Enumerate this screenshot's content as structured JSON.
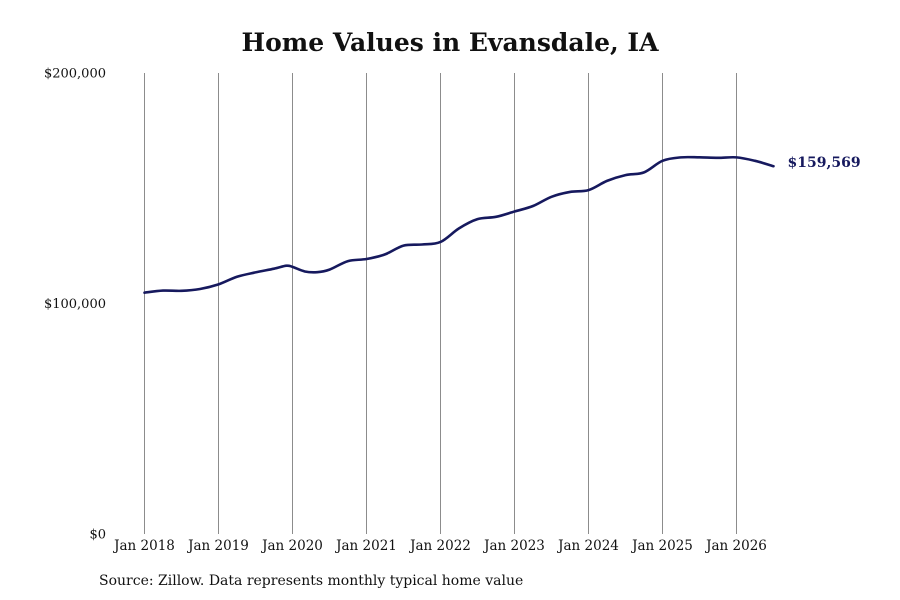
{
  "chart_data": {
    "type": "line",
    "title": "Home Values in Evansdale, IA",
    "xlabel": "",
    "ylabel": "",
    "ylim": [
      0,
      200000
    ],
    "y_ticks": [
      {
        "value": 0,
        "label": "$0"
      },
      {
        "value": 100000,
        "label": "$100,000"
      },
      {
        "value": 200000,
        "label": "$200,000"
      }
    ],
    "x_ticks": [
      {
        "value": "2018-01",
        "label": "Jan 2018"
      },
      {
        "value": "2019-01",
        "label": "Jan 2019"
      },
      {
        "value": "2020-01",
        "label": "Jan 2020"
      },
      {
        "value": "2021-01",
        "label": "Jan 2021"
      },
      {
        "value": "2022-01",
        "label": "Jan 2022"
      },
      {
        "value": "2023-01",
        "label": "Jan 2023"
      },
      {
        "value": "2024-01",
        "label": "Jan 2024"
      },
      {
        "value": "2025-01",
        "label": "Jan 2025"
      },
      {
        "value": "2026-01",
        "label": "Jan 2026"
      }
    ],
    "x_range": [
      "2018-01",
      "2026-07"
    ],
    "grid": {
      "vertical": true,
      "horizontal": false
    },
    "line_color": "#16195e",
    "grid_color": "#8c8c8c",
    "series": [
      {
        "points": [
          {
            "x": "2018-01",
            "y": 104700
          },
          {
            "x": "2018-04",
            "y": 105600
          },
          {
            "x": "2018-07",
            "y": 105500
          },
          {
            "x": "2018-10",
            "y": 106300
          },
          {
            "x": "2019-01",
            "y": 108300
          },
          {
            "x": "2019-04",
            "y": 111600
          },
          {
            "x": "2019-07",
            "y": 113500
          },
          {
            "x": "2019-10",
            "y": 115100
          },
          {
            "x": "2019-12",
            "y": 116400
          },
          {
            "x": "2020-01",
            "y": 115900
          },
          {
            "x": "2020-03",
            "y": 113900
          },
          {
            "x": "2020-05",
            "y": 113600
          },
          {
            "x": "2020-07",
            "y": 114700
          },
          {
            "x": "2020-10",
            "y": 118400
          },
          {
            "x": "2021-01",
            "y": 119300
          },
          {
            "x": "2021-04",
            "y": 121300
          },
          {
            "x": "2021-07",
            "y": 125100
          },
          {
            "x": "2021-10",
            "y": 125600
          },
          {
            "x": "2022-01",
            "y": 126700
          },
          {
            "x": "2022-04",
            "y": 132600
          },
          {
            "x": "2022-07",
            "y": 136600
          },
          {
            "x": "2022-10",
            "y": 137600
          },
          {
            "x": "2023-01",
            "y": 139900
          },
          {
            "x": "2023-04",
            "y": 142300
          },
          {
            "x": "2023-07",
            "y": 146300
          },
          {
            "x": "2023-10",
            "y": 148400
          },
          {
            "x": "2024-01",
            "y": 149200
          },
          {
            "x": "2024-04",
            "y": 153200
          },
          {
            "x": "2024-07",
            "y": 155700
          },
          {
            "x": "2024-10",
            "y": 156900
          },
          {
            "x": "2025-01",
            "y": 161900
          },
          {
            "x": "2025-04",
            "y": 163400
          },
          {
            "x": "2025-07",
            "y": 163400
          },
          {
            "x": "2025-10",
            "y": 163200
          },
          {
            "x": "2026-01",
            "y": 163400
          },
          {
            "x": "2026-04",
            "y": 161900
          },
          {
            "x": "2026-07",
            "y": 159569
          }
        ]
      }
    ],
    "end_label": "$159,569",
    "source": "Source: Zillow. Data represents monthly typical home value"
  }
}
